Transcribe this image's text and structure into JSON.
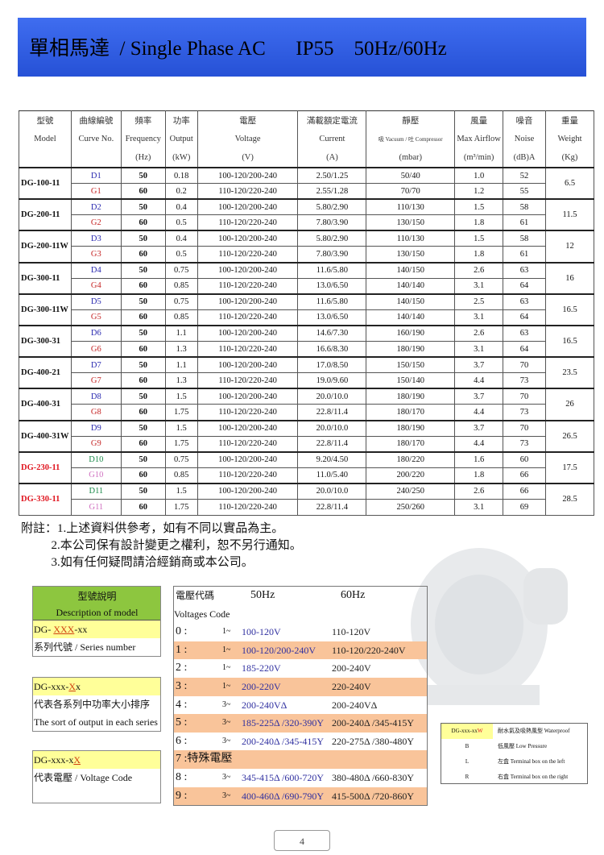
{
  "title": "單相馬達  / Single Phase AC      IP55    50Hz/60Hz",
  "table": {
    "headers": [
      [
        "型號",
        "曲線編號",
        "頻率",
        "功率",
        "電壓",
        "滿載額定電流",
        "靜壓",
        "風量",
        "噪音",
        "重量"
      ],
      [
        "Model",
        "Curve No.",
        "Frequency",
        "Output",
        "Voltage",
        "Current",
        "吸 Vacuum / 吐 Compressor",
        "Max Airflow",
        "Noise",
        "Weight"
      ],
      [
        "",
        "",
        "(Hz)",
        "(kW)",
        "(V)",
        "(A)",
        "(mbar)",
        "(m³/min)",
        "(dB)A",
        "(Kg)"
      ]
    ],
    "groups": [
      {
        "model": "DG-100-11",
        "weight": "6.5",
        "rows": [
          [
            "D1",
            "50",
            "0.18",
            "100-120/200-240",
            "2.50/1.25",
            "50/40",
            "1.0",
            "52"
          ],
          [
            "G1",
            "60",
            "0.2",
            "110-120/220-240",
            "2.55/1.28",
            "70/70",
            "1.2",
            "55"
          ]
        ]
      },
      {
        "model": "DG-200-11",
        "weight": "11.5",
        "rows": [
          [
            "D2",
            "50",
            "0.4",
            "100-120/200-240",
            "5.80/2.90",
            "110/130",
            "1.5",
            "58"
          ],
          [
            "G2",
            "60",
            "0.5",
            "110-120/220-240",
            "7.80/3.90",
            "130/150",
            "1.8",
            "61"
          ]
        ]
      },
      {
        "model": "DG-200-11W",
        "weight": "12",
        "rows": [
          [
            "D3",
            "50",
            "0.4",
            "100-120/200-240",
            "5.80/2.90",
            "110/130",
            "1.5",
            "58"
          ],
          [
            "G3",
            "60",
            "0.5",
            "110-120/220-240",
            "7.80/3.90",
            "130/150",
            "1.8",
            "61"
          ]
        ]
      },
      {
        "model": "DG-300-11",
        "weight": "16",
        "rows": [
          [
            "D4",
            "50",
            "0.75",
            "100-120/200-240",
            "11.6/5.80",
            "140/150",
            "2.6",
            "63"
          ],
          [
            "G4",
            "60",
            "0.85",
            "110-120/220-240",
            "13.0/6.50",
            "140/140",
            "3.1",
            "64"
          ]
        ]
      },
      {
        "model": "DG-300-11W",
        "weight": "16.5",
        "rows": [
          [
            "D5",
            "50",
            "0.75",
            "100-120/200-240",
            "11.6/5.80",
            "140/150",
            "2.5",
            "63"
          ],
          [
            "G5",
            "60",
            "0.85",
            "110-120/220-240",
            "13.0/6.50",
            "140/140",
            "3.1",
            "64"
          ]
        ]
      },
      {
        "model": "DG-300-31",
        "weight": "16.5",
        "rows": [
          [
            "D6",
            "50",
            "1.1",
            "100-120/200-240",
            "14.6/7.30",
            "160/190",
            "2.6",
            "63"
          ],
          [
            "G6",
            "60",
            "1.3",
            "110-120/220-240",
            "16.6/8.30",
            "180/190",
            "3.1",
            "64"
          ]
        ]
      },
      {
        "model": "DG-400-21",
        "weight": "23.5",
        "rows": [
          [
            "D7",
            "50",
            "1.1",
            "100-120/200-240",
            "17.0/8.50",
            "150/150",
            "3.7",
            "70"
          ],
          [
            "G7",
            "60",
            "1.3",
            "110-120/220-240",
            "19.0/9.60",
            "150/140",
            "4.4",
            "73"
          ]
        ]
      },
      {
        "model": "DG-400-31",
        "weight": "26",
        "rows": [
          [
            "D8",
            "50",
            "1.5",
            "100-120/200-240",
            "20.0/10.0",
            "180/190",
            "3.7",
            "70"
          ],
          [
            "G8",
            "60",
            "1.75",
            "110-120/220-240",
            "22.8/11.4",
            "180/170",
            "4.4",
            "73"
          ]
        ]
      },
      {
        "model": "DG-400-31W",
        "weight": "26.5",
        "rows": [
          [
            "D9",
            "50",
            "1.5",
            "100-120/200-240",
            "20.0/10.0",
            "180/190",
            "3.7",
            "70"
          ],
          [
            "G9",
            "60",
            "1.75",
            "110-120/220-240",
            "22.8/11.4",
            "180/170",
            "4.4",
            "73"
          ]
        ]
      },
      {
        "model": "DG-230-11",
        "weight": "17.5",
        "highlight": true,
        "rows": [
          [
            "D10",
            "50",
            "0.75",
            "100-120/200-240",
            "9.20/4.50",
            "180/220",
            "1.6",
            "60"
          ],
          [
            "G10",
            "60",
            "0.85",
            "110-120/220-240",
            "11.0/5.40",
            "200/220",
            "1.8",
            "66"
          ]
        ]
      },
      {
        "model": "DG-330-11",
        "weight": "28.5",
        "highlight": true,
        "rows": [
          [
            "D11",
            "50",
            "1.5",
            "100-120/200-240",
            "20.0/10.0",
            "240/250",
            "2.6",
            "66"
          ],
          [
            "G11",
            "60",
            "1.75",
            "110-120/220-240",
            "22.8/11.4",
            "250/260",
            "3.1",
            "69"
          ]
        ]
      }
    ]
  },
  "notes": [
    "附註：1.上述資料供參考，如有不同以實品為主。",
    "          2.本公司保有設計變更之權利，恕不另行通知。",
    "          3.如有任何疑問請洽經銷商或本公司。"
  ],
  "model_desc": {
    "title_zh": "型號說明",
    "title_en": "Description of model",
    "b1": {
      "pre": "DG- ",
      "hl": "XXX",
      "post": "-xx",
      "desc": "系列代號  / Series number"
    },
    "b2": {
      "pre": "DG-xxx-",
      "hl": "X",
      "post": "x",
      "desc_zh": "代表各系列中功率大小排序",
      "desc_en": "The sort of output in each series"
    },
    "b3": {
      "pre": "DG-xxx-x",
      "hl": "X",
      "post": "",
      "desc": "代表電壓  / Voltage Code"
    }
  },
  "voltage": {
    "h1": "電壓代碼",
    "h50": "50Hz",
    "h60": "60Hz",
    "h2": "Voltages Code",
    "rows": [
      [
        "0 :",
        "1~",
        "100-120V",
        "110-120V"
      ],
      [
        "1 :",
        "1~",
        "100-120/200-240V",
        "110-120/220-240V"
      ],
      [
        "2 :",
        "1~",
        "185-220V",
        "200-240V"
      ],
      [
        "3 :",
        "1~",
        "200-220V",
        "220-240V"
      ],
      [
        "4 :",
        "3~",
        "200-240VΔ",
        "200-240VΔ"
      ],
      [
        "5 :",
        "3~",
        "185-225Δ /320-390Y",
        "200-240Δ /345-415Y"
      ],
      [
        "6 :",
        "3~",
        "200-240Δ /345-415Y",
        "220-275Δ /380-480Y"
      ],
      [
        "7 :特殊電壓",
        "",
        "",
        ""
      ],
      [
        "8 :",
        "3~",
        "345-415Δ /600-720Y",
        "380-480Δ /660-830Y"
      ],
      [
        "9 :",
        "3~",
        "400-460Δ /690-790Y",
        "415-500Δ /720-860Y"
      ]
    ]
  },
  "suffix": {
    "code_pre": "DG-xxx-xx",
    "code_hl": "W",
    "rows": [
      [
        "",
        "耐水氣及吸熱風型 Waterproof"
      ],
      [
        "B",
        "低風壓 Low Pressure"
      ],
      [
        "L",
        "左盒 Terminal box on the left"
      ],
      [
        "R",
        "右盒 Terminal box on the right"
      ]
    ]
  },
  "page_number": "4",
  "colors": {
    "banner": "#2f5fe0",
    "header_green": "#8dc63f",
    "highlight_yellow": "#ffff99",
    "row_orange": "#f9c49a",
    "model_red": "#e0141e"
  }
}
